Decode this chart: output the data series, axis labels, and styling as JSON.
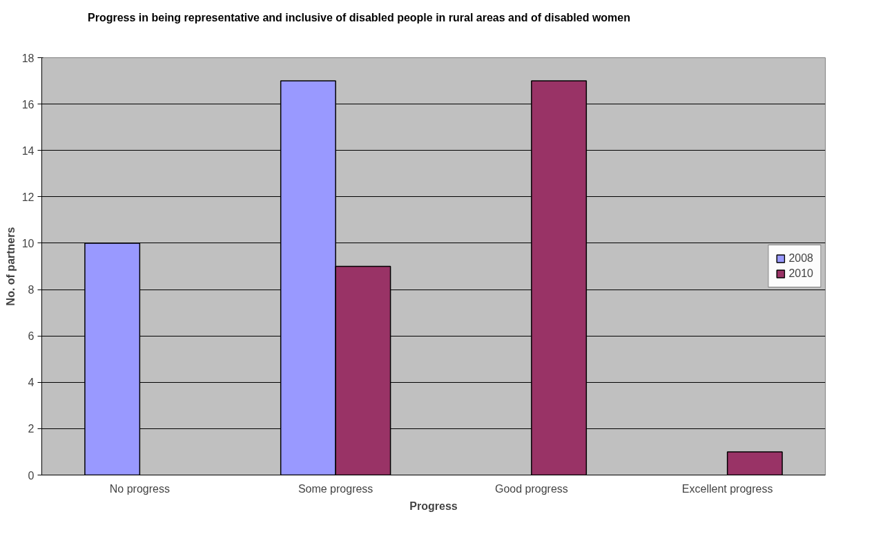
{
  "chart_data": {
    "type": "bar",
    "title": "Progress in being representative and inclusive of disabled people in rural areas and of disabled women",
    "xlabel": "Progress",
    "ylabel": "No. of partners",
    "categories": [
      "No progress",
      "Some progress",
      "Good progress",
      "Excellent progress"
    ],
    "series": [
      {
        "name": "2008",
        "color": "#9999ff",
        "values": [
          10,
          17,
          null,
          null
        ]
      },
      {
        "name": "2010",
        "color": "#993366",
        "values": [
          null,
          9,
          17,
          1
        ]
      }
    ],
    "ylim": [
      0,
      18
    ],
    "yticks": [
      0,
      2,
      4,
      6,
      8,
      10,
      12,
      14,
      16,
      18
    ],
    "grid": "y",
    "legend": "right"
  }
}
